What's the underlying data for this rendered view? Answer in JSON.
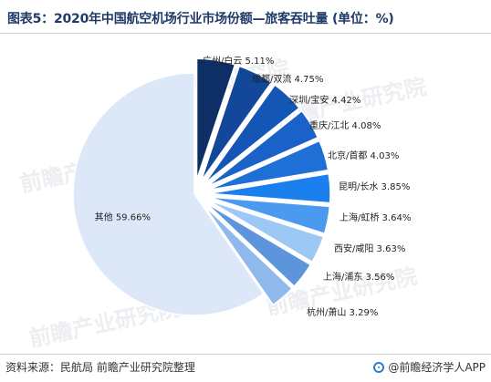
{
  "title": "图表5：2020年中国航空机场行业市场份额—旅客吞吐量 (单位：%)",
  "source": "资料来源：民航局 前瞻产业研究院整理",
  "brand": "@前瞻经济学人APP",
  "watermark": "前瞻产业研究院",
  "chart_data": {
    "type": "pie",
    "unit": "%",
    "slices": [
      {
        "label": "广州/白云",
        "value": 5.11,
        "color": "#0e2f66"
      },
      {
        "label": "成都/双流",
        "value": 4.75,
        "color": "#12479a"
      },
      {
        "label": "深圳/宝安",
        "value": 4.42,
        "color": "#1456b6"
      },
      {
        "label": "重庆/江北",
        "value": 4.08,
        "color": "#1a62c7"
      },
      {
        "label": "北京/首都",
        "value": 4.03,
        "color": "#1e70d6"
      },
      {
        "label": "昆明/长水",
        "value": 3.85,
        "color": "#1980ee"
      },
      {
        "label": "上海/虹桥",
        "value": 3.64,
        "color": "#4a9af0"
      },
      {
        "label": "西安/咸阳",
        "value": 3.63,
        "color": "#9cc8f5"
      },
      {
        "label": "上海/浦东",
        "value": 3.56,
        "color": "#5d95dd"
      },
      {
        "label": "杭州/萧山",
        "value": 3.29,
        "color": "#8fb8ec"
      },
      {
        "label": "其他",
        "value": 59.66,
        "color": "#dce8f8"
      }
    ]
  }
}
